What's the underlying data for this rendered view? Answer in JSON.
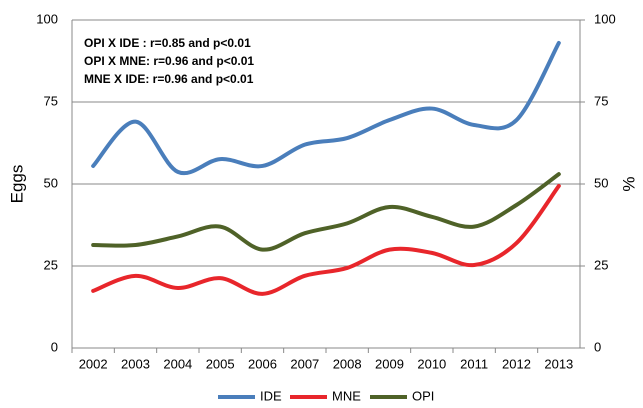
{
  "chart_data": {
    "type": "line",
    "y_label": "Eggs",
    "y2_label": "%",
    "annotations": [
      "OPI X IDE : r=0.85 and p<0.01",
      "OPI  X MNE: r=0.96 and p<0.01",
      "MNE X IDE: r=0.96 and p<0.01"
    ],
    "categories": [
      "2002",
      "2003",
      "2004",
      "2005",
      "2006",
      "2007",
      "2008",
      "2009",
      "2010",
      "2011",
      "2012",
      "2013"
    ],
    "series": [
      {
        "name": "IDE",
        "color": "#4a7ebb",
        "values": [
          55.5,
          69,
          53.7,
          57.6,
          55.5,
          62,
          64,
          69.5,
          73,
          68,
          69.5,
          93
        ]
      },
      {
        "name": "MNE",
        "color": "#e8262b",
        "values": [
          17.4,
          22,
          18.3,
          21.3,
          16.5,
          22,
          24.4,
          30,
          29,
          25.3,
          32,
          49.4
        ]
      },
      {
        "name": "OPI",
        "color": "#4f6228",
        "values": [
          31.4,
          31.4,
          34,
          37,
          30,
          35,
          38,
          43,
          40,
          37,
          43.6,
          53
        ]
      }
    ],
    "ylim": [
      0,
      100
    ],
    "yticks": [
      0,
      25,
      50,
      75,
      100
    ],
    "y2lim": [
      0,
      100
    ],
    "y2ticks": [
      0,
      25,
      50,
      75,
      100
    ],
    "grid": true,
    "legend": "bottom"
  }
}
